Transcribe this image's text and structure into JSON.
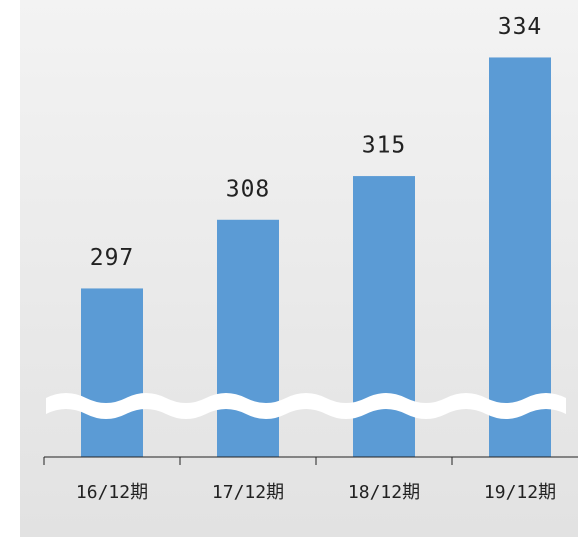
{
  "chart_data": {
    "type": "bar",
    "categories": [
      "16/12期",
      "17/12期",
      "18/12期",
      "19/12期"
    ],
    "values": [
      297,
      308,
      315,
      334
    ],
    "color": "#5b9bd5",
    "ylim": [
      270,
      340
    ]
  }
}
